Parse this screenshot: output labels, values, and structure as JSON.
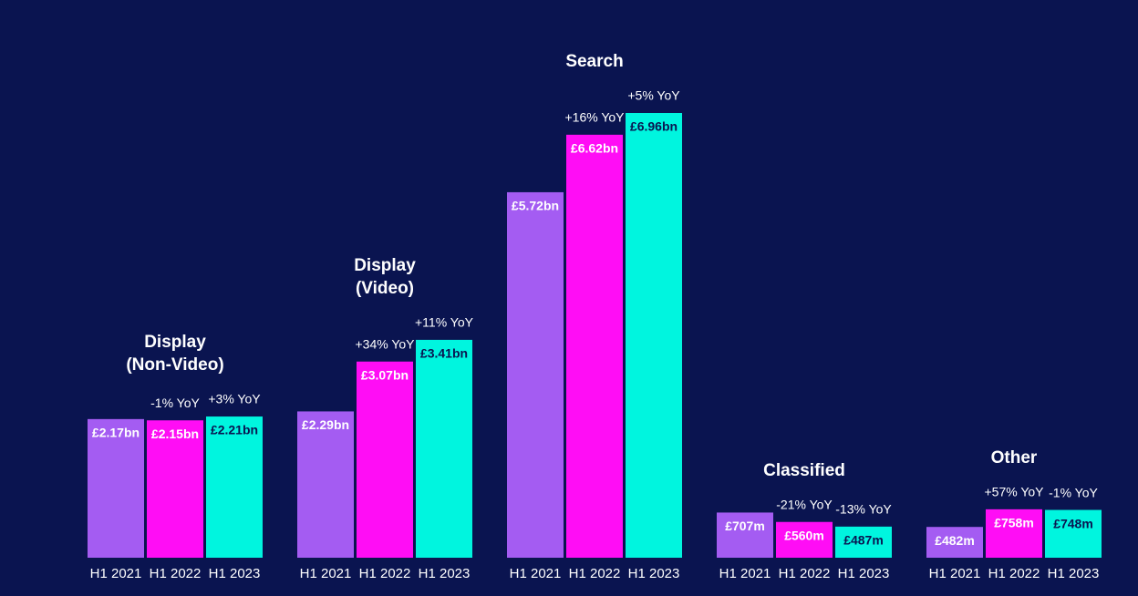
{
  "chart_data": {
    "type": "bar",
    "categories": [
      [
        "Display",
        "(Non-Video)"
      ],
      [
        "Display",
        "(Video)"
      ],
      [
        "Search"
      ],
      [
        "Classified"
      ],
      [
        "Other"
      ]
    ],
    "series": [
      {
        "name": "H1 2021",
        "color": "#a45cf2",
        "label_color": "#ffffff",
        "values": [
          2170,
          2290,
          5720,
          707,
          482
        ],
        "value_labels": [
          "£2.17bn",
          "£2.29bn",
          "£5.72bn",
          "£707m",
          "£482m"
        ]
      },
      {
        "name": "H1 2022",
        "color": "#ff0df5",
        "label_color": "#ffffff",
        "values": [
          2150,
          3070,
          6620,
          560,
          758
        ],
        "value_labels": [
          "£2.15bn",
          "£3.07bn",
          "£6.62bn",
          "£560m",
          "£758m"
        ],
        "yoy": [
          "-1% YoY",
          "+34% YoY",
          "+16% YoY",
          "-21% YoY",
          "+57% YoY"
        ]
      },
      {
        "name": "H1 2023",
        "color": "#00f5df",
        "label_color": "#0a1450",
        "values": [
          2210,
          3410,
          6960,
          487,
          748
        ],
        "value_labels": [
          "£2.21bn",
          "£3.41bn",
          "£6.96bn",
          "£487m",
          "£748m"
        ],
        "yoy": [
          "+3% YoY",
          "+11% YoY",
          "+5% YoY",
          "-13% YoY",
          "-1% YoY"
        ]
      }
    ]
  }
}
